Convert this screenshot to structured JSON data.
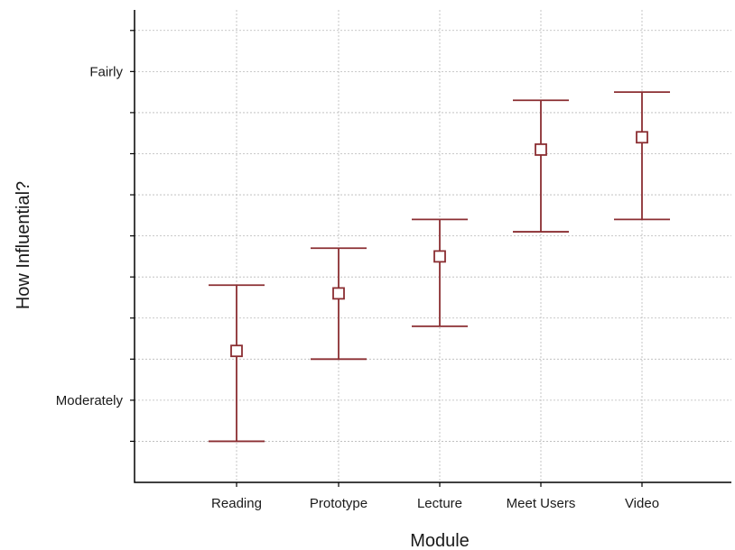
{
  "chart_data": {
    "type": "errorbar",
    "xlabel": "Module",
    "ylabel": "How Influential?",
    "categories": [
      "Reading",
      "Prototype",
      "Lecture",
      "Meet Users",
      "Video"
    ],
    "series": [
      {
        "mean": [
          3.12,
          3.26,
          3.35,
          3.61,
          3.64
        ],
        "lower": [
          2.9,
          3.1,
          3.18,
          3.41,
          3.44
        ],
        "upper": [
          3.28,
          3.37,
          3.44,
          3.73,
          3.75
        ]
      }
    ],
    "ylim": [
      2.8,
      3.95
    ],
    "ytick_values": [
      2.9,
      3.0,
      3.1,
      3.2,
      3.3,
      3.4,
      3.5,
      3.6,
      3.7,
      3.8,
      3.9
    ],
    "ytick_labels": [
      "",
      "Moderately",
      "",
      "",
      "",
      "",
      "",
      "",
      "",
      "Fairly",
      ""
    ],
    "grid": true,
    "colors": {
      "series": "#8b2e32",
      "axis": "#000000",
      "grid": "#b8b8b8"
    }
  }
}
